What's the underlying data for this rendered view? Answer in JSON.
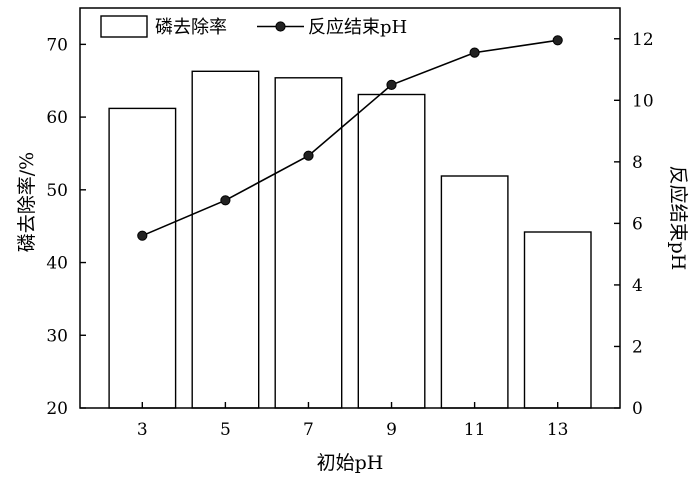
{
  "chart_data": {
    "type": "bar+line",
    "xlabel": "初始pH",
    "categories": [
      "3",
      "5",
      "7",
      "9",
      "11",
      "13"
    ],
    "y_left": {
      "label": "磷去除率/%",
      "lim": [
        20,
        75
      ],
      "ticks": [
        "20",
        "30",
        "40",
        "50",
        "60",
        "70"
      ]
    },
    "y_right": {
      "label": "反应结束pH",
      "lim": [
        0,
        13
      ],
      "ticks": [
        "0",
        "2",
        "4",
        "6",
        "8",
        "10",
        "12"
      ]
    },
    "series": [
      {
        "name": "磷去除率",
        "type": "bar",
        "axis": "left",
        "values": [
          61.2,
          66.3,
          65.4,
          63.1,
          51.9,
          44.2
        ]
      },
      {
        "name": "反应结束pH",
        "type": "line",
        "axis": "right",
        "values": [
          5.6,
          6.75,
          8.2,
          10.5,
          11.55,
          11.95
        ]
      }
    ],
    "legend": "top-left",
    "grid": false,
    "colors": {
      "bar_fill": "#ffffff",
      "stroke": "#000000"
    }
  }
}
